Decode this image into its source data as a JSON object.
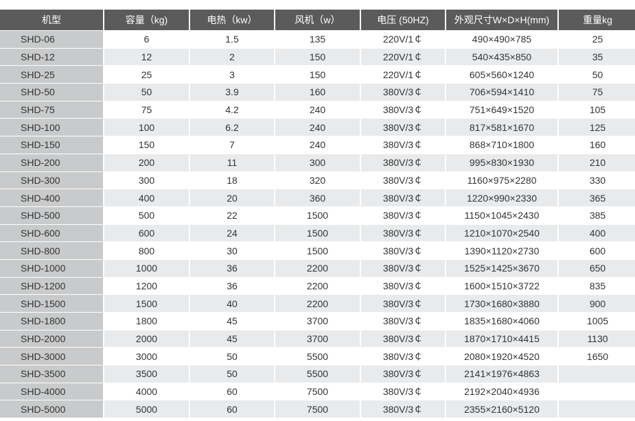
{
  "table": {
    "headers": [
      "机型",
      "容量（kg)",
      "电热（kw）",
      "风机（w）",
      "电压 (50HZ)",
      "外观尺寸W×D×H(mm)",
      "重量kg"
    ],
    "rows": [
      [
        "SHD-06",
        "6",
        "1.5",
        "135",
        "220V/1￠",
        "490×490×785",
        "25"
      ],
      [
        "SHD-12",
        "12",
        "2",
        "150",
        "220V/1￠",
        "540×435×850",
        "35"
      ],
      [
        "SHD-25",
        "25",
        "3",
        "150",
        "220V/1￠",
        "605×560×1240",
        "50"
      ],
      [
        "SHD-50",
        "50",
        "3.9",
        "160",
        "380V/3￠",
        "706×594×1410",
        "75"
      ],
      [
        "SHD-75",
        "75",
        "4.2",
        "240",
        "380V/3￠",
        "751×649×1520",
        "105"
      ],
      [
        "SHD-100",
        "100",
        "6.2",
        "240",
        "380V/3￠",
        "817×581×1670",
        "125"
      ],
      [
        "SHD-150",
        "150",
        "7",
        "240",
        "380V/3￠",
        "868×710×1800",
        "160"
      ],
      [
        "SHD-200",
        "200",
        "11",
        "300",
        "380V/3￠",
        "995×830×1930",
        "210"
      ],
      [
        "SHD-300",
        "300",
        "18",
        "320",
        "380V/3￠",
        "1160×975×2280",
        "330"
      ],
      [
        "SHD-400",
        "400",
        "20",
        "360",
        "380V/3￠",
        "1220×990×2330",
        "365"
      ],
      [
        "SHD-500",
        "500",
        "22",
        "1500",
        "380V/3￠",
        "1150×1045×2430",
        "385"
      ],
      [
        "SHD-600",
        "600",
        "24",
        "1500",
        "380V/3￠",
        "1210×1070×2540",
        "400"
      ],
      [
        "SHD-800",
        "800",
        "30",
        "1500",
        "380V/3￠",
        "1390×1120×2730",
        "600"
      ],
      [
        "SHD-1000",
        "1000",
        "36",
        "2200",
        "380V/3￠",
        "1525×1425×3670",
        "650"
      ],
      [
        "SHD-1200",
        "1200",
        "36",
        "2200",
        "380V/3￠",
        "1600×1510×3722",
        "835"
      ],
      [
        "SHD-1500",
        "1500",
        "40",
        "2200",
        "380V/3￠",
        "1730×1680×3880",
        "900"
      ],
      [
        "SHD-1800",
        "1800",
        "45",
        "3700",
        "380V/3￠",
        "1835×1680×4060",
        "1005"
      ],
      [
        "SHD-2000",
        "2000",
        "45",
        "3700",
        "380V/3￠",
        "1870×1710×4415",
        "1130"
      ],
      [
        "SHD-3000",
        "3000",
        "50",
        "5500",
        "380V/3￠",
        "2080×1920×4520",
        "1650"
      ],
      [
        "SHD-3500",
        "3500",
        "50",
        "5500",
        "380V/3￠",
        "2141×1976×4863",
        ""
      ],
      [
        "SHD-4000",
        "4000",
        "60",
        "7500",
        "380V/3￠",
        "2192×2040×4936",
        ""
      ],
      [
        "SHD-5000",
        "5000",
        "60",
        "7500",
        "380V/3￠",
        "2355×2160×5120",
        ""
      ]
    ]
  },
  "colors": {
    "header_bg": "#5b5b5b",
    "model_col_bg": "#c9cacb",
    "stripe_bg": "#e8eaec"
  }
}
